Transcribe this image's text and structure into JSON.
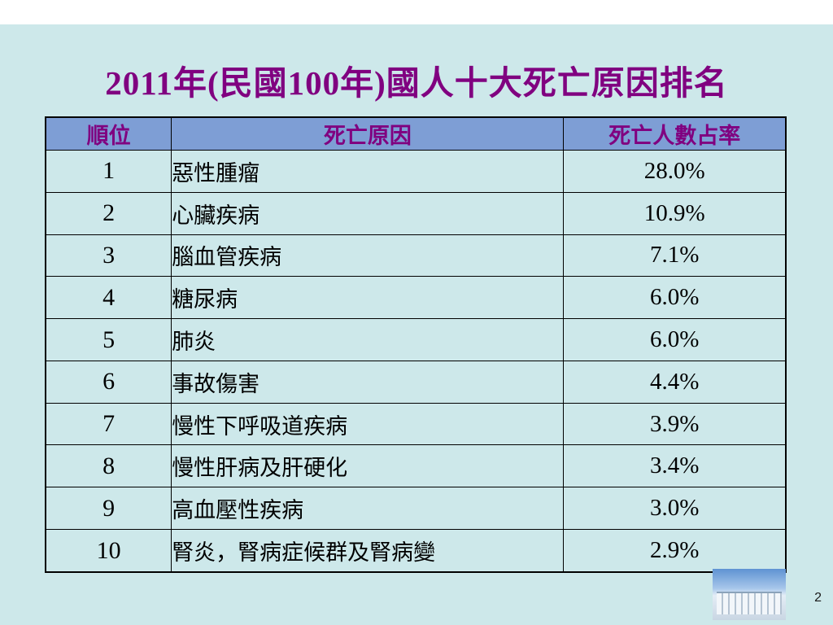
{
  "title": "2011年(民國100年)國人十大死亡原因排名",
  "page_number": "2",
  "table": {
    "headers": [
      "順位",
      "死亡原因",
      "死亡人數占率"
    ],
    "rows": [
      {
        "rank": "1",
        "cause": "惡性腫瘤",
        "rate": "28.0%"
      },
      {
        "rank": "2",
        "cause": "心臟疾病",
        "rate": "10.9%"
      },
      {
        "rank": "3",
        "cause": "腦血管疾病",
        "rate": "7.1%"
      },
      {
        "rank": "4",
        "cause": "糖尿病",
        "rate": "6.0%"
      },
      {
        "rank": "5",
        "cause": "肺炎",
        "rate": "6.0%"
      },
      {
        "rank": "6",
        "cause": "事故傷害",
        "rate": "4.4%"
      },
      {
        "rank": "7",
        "cause": "慢性下呼吸道疾病",
        "rate": "3.9%"
      },
      {
        "rank": "8",
        "cause": "慢性肝病及肝硬化",
        "rate": "3.4%"
      },
      {
        "rank": "9",
        "cause": "高血壓性疾病",
        "rate": "3.0%"
      },
      {
        "rank": "10",
        "cause": "腎炎，腎病症候群及腎病變",
        "rate": "2.9%"
      }
    ]
  },
  "colors": {
    "slide_background": "#cde8ea",
    "title_text": "#800080",
    "header_background": "#7e9ed5",
    "header_text": "#800080",
    "border": "#000000"
  }
}
